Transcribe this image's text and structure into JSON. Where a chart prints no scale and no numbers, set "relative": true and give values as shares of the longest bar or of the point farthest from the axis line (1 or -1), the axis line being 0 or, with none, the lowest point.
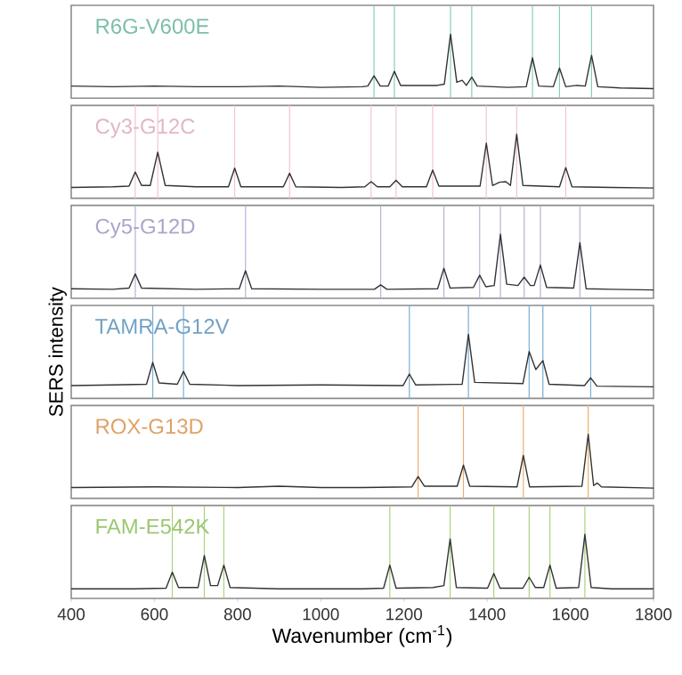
{
  "chart_data": [
    {
      "type": "line",
      "title": "R6G-V600E",
      "relative": true,
      "xlim": [
        400,
        1800
      ],
      "xticks": [
        400,
        600,
        800,
        1000,
        1200,
        1400,
        1600,
        1800
      ],
      "tick_labels": false,
      "series": [
        {
          "color": "#333333",
          "x": [
            400,
            500,
            600,
            700,
            800,
            900,
            1000,
            1100,
            1113,
            1128,
            1143,
            1162,
            1177,
            1192,
            1280,
            1297,
            1312,
            1327,
            1340,
            1350,
            1363,
            1376,
            1450,
            1494,
            1509,
            1524,
            1559,
            1574,
            1589,
            1615,
            1636,
            1651,
            1666,
            1720,
            1800
          ],
          "values": [
            0.19,
            0.18,
            0.19,
            0.18,
            0.18,
            0.19,
            0.17,
            0.18,
            0.19,
            0.35,
            0.19,
            0.19,
            0.42,
            0.2,
            0.2,
            0.22,
            1,
            0.25,
            0.28,
            0.2,
            0.33,
            0.19,
            0.17,
            0.18,
            0.63,
            0.19,
            0.18,
            0.47,
            0.18,
            0.2,
            0.19,
            0.67,
            0.18,
            0.16,
            0.15
          ]
        }
      ],
      "ref_lines": [
        {
          "axis": "x",
          "value": 1128,
          "color": "#86cdb8"
        },
        {
          "axis": "x",
          "value": 1177,
          "color": "#86cdb8"
        },
        {
          "axis": "x",
          "value": 1312,
          "color": "#86cdb8"
        },
        {
          "axis": "x",
          "value": 1363,
          "color": "#86cdb8"
        },
        {
          "axis": "x",
          "value": 1509,
          "color": "#86cdb8"
        },
        {
          "axis": "x",
          "value": 1574,
          "color": "#86cdb8"
        },
        {
          "axis": "x",
          "value": 1651,
          "color": "#86cdb8"
        }
      ]
    },
    {
      "type": "line",
      "title": "Cy3-G12C",
      "relative": true,
      "xlim": [
        400,
        1800
      ],
      "xticks": [
        400,
        600,
        800,
        1000,
        1200,
        1400,
        1600,
        1800
      ],
      "tick_labels": false,
      "series": [
        {
          "color": "#333333",
          "x": [
            400,
            500,
            539,
            554,
            569,
            590,
            608,
            626,
            700,
            778,
            793,
            808,
            910,
            925,
            940,
            1050,
            1106,
            1121,
            1136,
            1166,
            1181,
            1196,
            1254,
            1269,
            1284,
            1383,
            1398,
            1413,
            1430,
            1445,
            1456,
            1471,
            1486,
            1574,
            1589,
            1604,
            1700,
            1800
          ],
          "values": [
            0.17,
            0.18,
            0.19,
            0.41,
            0.2,
            0.2,
            0.72,
            0.2,
            0.18,
            0.18,
            0.47,
            0.18,
            0.18,
            0.39,
            0.18,
            0.17,
            0.18,
            0.26,
            0.18,
            0.18,
            0.28,
            0.18,
            0.18,
            0.44,
            0.19,
            0.19,
            0.86,
            0.2,
            0.25,
            0.26,
            0.2,
            1,
            0.2,
            0.18,
            0.48,
            0.18,
            0.17,
            0.16
          ]
        }
      ],
      "ref_lines": [
        {
          "axis": "x",
          "value": 554,
          "color": "#f2c4d4"
        },
        {
          "axis": "x",
          "value": 608,
          "color": "#f2c4d4"
        },
        {
          "axis": "x",
          "value": 793,
          "color": "#f2c4d4"
        },
        {
          "axis": "x",
          "value": 925,
          "color": "#f2c4d4"
        },
        {
          "axis": "x",
          "value": 1121,
          "color": "#f2c4d4"
        },
        {
          "axis": "x",
          "value": 1181,
          "color": "#f2c4d4"
        },
        {
          "axis": "x",
          "value": 1269,
          "color": "#f2c4d4"
        },
        {
          "axis": "x",
          "value": 1398,
          "color": "#f2c4d4"
        },
        {
          "axis": "x",
          "value": 1471,
          "color": "#f2c4d4"
        },
        {
          "axis": "x",
          "value": 1589,
          "color": "#f2c4d4"
        }
      ]
    },
    {
      "type": "line",
      "title": "Cy5-G12D",
      "relative": true,
      "xlim": [
        400,
        1800
      ],
      "xticks": [
        400,
        600,
        800,
        1000,
        1200,
        1400,
        1600,
        1800
      ],
      "tick_labels": false,
      "series": [
        {
          "color": "#333333",
          "x": [
            400,
            500,
            539,
            554,
            569,
            700,
            804,
            819,
            834,
            1000,
            1129,
            1144,
            1159,
            1281,
            1296,
            1311,
            1367,
            1382,
            1397,
            1417,
            1432,
            1447,
            1474,
            1489,
            1504,
            1513,
            1528,
            1543,
            1608,
            1623,
            1638,
            1700,
            1800
          ],
          "values": [
            0.15,
            0.14,
            0.16,
            0.38,
            0.16,
            0.14,
            0.15,
            0.43,
            0.15,
            0.14,
            0.14,
            0.21,
            0.14,
            0.15,
            0.47,
            0.16,
            0.17,
            0.36,
            0.18,
            0.2,
            1,
            0.22,
            0.2,
            0.33,
            0.2,
            0.2,
            0.52,
            0.17,
            0.16,
            0.87,
            0.15,
            0.14,
            0.13
          ]
        }
      ],
      "ref_lines": [
        {
          "axis": "x",
          "value": 554,
          "color": "#b5b3d8"
        },
        {
          "axis": "x",
          "value": 819,
          "color": "#b5b3d8"
        },
        {
          "axis": "x",
          "value": 1144,
          "color": "#b5b3d8"
        },
        {
          "axis": "x",
          "value": 1296,
          "color": "#b5b3d8"
        },
        {
          "axis": "x",
          "value": 1382,
          "color": "#b5b3d8"
        },
        {
          "axis": "x",
          "value": 1432,
          "color": "#b5b3d8"
        },
        {
          "axis": "x",
          "value": 1489,
          "color": "#b5b3d8"
        },
        {
          "axis": "x",
          "value": 1528,
          "color": "#b5b3d8"
        },
        {
          "axis": "x",
          "value": 1623,
          "color": "#b5b3d8"
        }
      ]
    },
    {
      "type": "line",
      "title": "TAMRA-G12V",
      "relative": true,
      "xlim": [
        400,
        1800
      ],
      "xticks": [
        400,
        600,
        800,
        1000,
        1200,
        1400,
        1600,
        1800
      ],
      "tick_labels": false,
      "ylabel": "SERS intensity",
      "series": [
        {
          "color": "#333333",
          "x": [
            400,
            500,
            581,
            596,
            611,
            655,
            670,
            685,
            800,
            1000,
            1198,
            1213,
            1228,
            1340,
            1355,
            1370,
            1486,
            1501,
            1517,
            1534,
            1549,
            1634,
            1649,
            1664,
            1800
          ],
          "values": [
            0.2,
            0.21,
            0.22,
            0.56,
            0.24,
            0.22,
            0.42,
            0.22,
            0.2,
            0.21,
            0.2,
            0.38,
            0.21,
            0.22,
            1,
            0.25,
            0.23,
            0.73,
            0.45,
            0.59,
            0.22,
            0.2,
            0.32,
            0.19,
            0.18
          ]
        }
      ],
      "ref_lines": [
        {
          "axis": "x",
          "value": 596,
          "color": "#7aaed4"
        },
        {
          "axis": "x",
          "value": 670,
          "color": "#7aaed4"
        },
        {
          "axis": "x",
          "value": 1213,
          "color": "#7aaed4"
        },
        {
          "axis": "x",
          "value": 1355,
          "color": "#7aaed4"
        },
        {
          "axis": "x",
          "value": 1501,
          "color": "#7aaed4"
        },
        {
          "axis": "x",
          "value": 1534,
          "color": "#7aaed4"
        },
        {
          "axis": "x",
          "value": 1649,
          "color": "#7aaed4"
        }
      ]
    },
    {
      "type": "line",
      "title": "ROX-G13D",
      "relative": true,
      "xlim": [
        400,
        1800
      ],
      "xticks": [
        400,
        600,
        800,
        1000,
        1200,
        1400,
        1600,
        1800
      ],
      "tick_labels": false,
      "series": [
        {
          "color": "#333333",
          "x": [
            400,
            600,
            800,
            900,
            1000,
            1100,
            1219,
            1234,
            1249,
            1328,
            1343,
            1358,
            1472,
            1487,
            1502,
            1628,
            1643,
            1656,
            1665,
            1675,
            1800
          ],
          "values": [
            0.17,
            0.18,
            0.17,
            0.19,
            0.17,
            0.17,
            0.18,
            0.34,
            0.19,
            0.19,
            0.52,
            0.19,
            0.18,
            0.67,
            0.18,
            0.19,
            1,
            0.2,
            0.24,
            0.18,
            0.16
          ]
        }
      ],
      "ref_lines": [
        {
          "axis": "x",
          "value": 1234,
          "color": "#f0ae6e"
        },
        {
          "axis": "x",
          "value": 1343,
          "color": "#f0ae6e"
        },
        {
          "axis": "x",
          "value": 1487,
          "color": "#f0ae6e"
        },
        {
          "axis": "x",
          "value": 1643,
          "color": "#f0ae6e"
        }
      ]
    },
    {
      "type": "line",
      "title": "FAM-E542K",
      "relative": true,
      "xlim": [
        400,
        1800
      ],
      "xticks": [
        400,
        600,
        800,
        1000,
        1200,
        1400,
        1600,
        1800
      ],
      "tick_labels": "x",
      "xlabel": "Wavenumber (cm$^{-1}$)",
      "series": [
        {
          "color": "#333333",
          "x": [
            400,
            550,
            628,
            643,
            658,
            705,
            720,
            735,
            752,
            767,
            782,
            900,
            1100,
            1151,
            1166,
            1181,
            1270,
            1296,
            1311,
            1326,
            1401,
            1416,
            1431,
            1486,
            1501,
            1516,
            1536,
            1551,
            1566,
            1620,
            1635,
            1650,
            1700,
            1800
          ],
          "values": [
            0.15,
            0.15,
            0.16,
            0.41,
            0.17,
            0.17,
            0.67,
            0.2,
            0.2,
            0.52,
            0.17,
            0.15,
            0.15,
            0.16,
            0.52,
            0.16,
            0.17,
            0.2,
            0.93,
            0.17,
            0.16,
            0.39,
            0.16,
            0.16,
            0.33,
            0.17,
            0.17,
            0.52,
            0.16,
            0.17,
            1,
            0.17,
            0.15,
            0.15
          ]
        }
      ],
      "ref_lines": [
        {
          "axis": "x",
          "value": 643,
          "color": "#a6d67a"
        },
        {
          "axis": "x",
          "value": 720,
          "color": "#a6d67a"
        },
        {
          "axis": "x",
          "value": 767,
          "color": "#a6d67a"
        },
        {
          "axis": "x",
          "value": 1166,
          "color": "#a6d67a"
        },
        {
          "axis": "x",
          "value": 1311,
          "color": "#a6d67a"
        },
        {
          "axis": "x",
          "value": 1416,
          "color": "#a6d67a"
        },
        {
          "axis": "x",
          "value": 1501,
          "color": "#a6d67a"
        },
        {
          "axis": "x",
          "value": 1551,
          "color": "#a6d67a"
        },
        {
          "axis": "x",
          "value": 1635,
          "color": "#a6d67a"
        }
      ]
    }
  ]
}
